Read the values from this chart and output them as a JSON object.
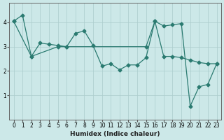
{
  "xlabel": "Humidex (Indice chaleur)",
  "bg_color": "#cce8e8",
  "grid_color": "#aacccc",
  "line_color": "#2a7a70",
  "xlim": [
    -0.5,
    23.5
  ],
  "ylim": [
    0,
    4.8
  ],
  "xticks": [
    0,
    1,
    2,
    3,
    4,
    5,
    6,
    7,
    8,
    9,
    10,
    11,
    12,
    13,
    14,
    15,
    16,
    17,
    18,
    19,
    20,
    21,
    22,
    23
  ],
  "yticks": [
    1,
    2,
    3,
    4
  ],
  "line1_x": [
    0,
    1,
    2,
    3,
    4,
    5,
    6,
    7,
    8,
    9,
    10,
    11,
    12,
    13,
    14,
    15,
    16,
    17,
    18,
    19,
    20,
    21,
    22,
    23
  ],
  "line1_y": [
    4.05,
    4.3,
    2.6,
    3.15,
    3.1,
    3.05,
    3.0,
    3.55,
    3.65,
    3.05,
    2.2,
    2.3,
    2.05,
    2.25,
    2.25,
    2.55,
    4.05,
    2.6,
    2.6,
    2.55,
    2.45,
    2.35,
    2.3,
    2.3
  ],
  "line2_x": [
    0,
    2,
    5,
    6,
    15,
    16,
    17,
    18,
    19,
    20,
    21,
    22,
    23
  ],
  "line2_y": [
    4.05,
    2.6,
    3.0,
    3.0,
    3.0,
    4.05,
    3.85,
    3.9,
    3.95,
    0.55,
    1.35,
    1.45,
    2.3
  ]
}
